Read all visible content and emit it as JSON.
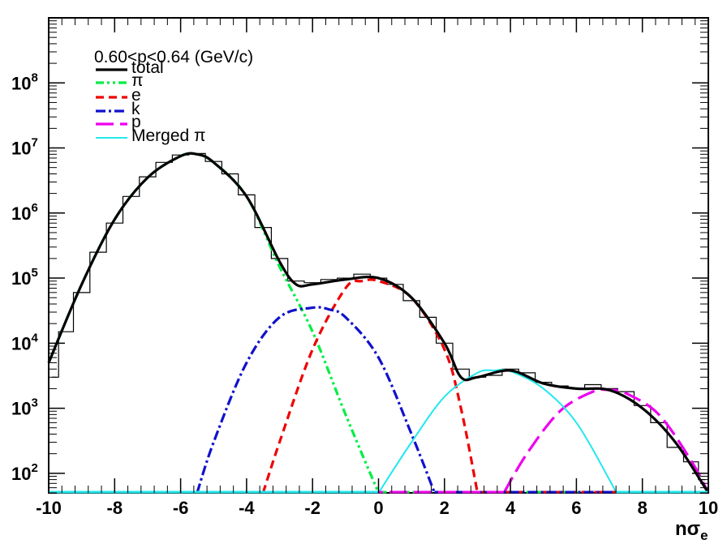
{
  "chart_data": {
    "type": "line",
    "title": "",
    "annotation": "0.60<p<0.64 (GeV/c)",
    "xlabel_main": "nσ",
    "xlabel_sub": "e",
    "ylabel": "",
    "xlim": [
      -10,
      10
    ],
    "ylim": [
      50,
      1000000000
    ],
    "yscale": "log",
    "grid": false,
    "legend_position": "top-left",
    "x_ticks": [
      -10,
      -8,
      -6,
      -4,
      -2,
      0,
      2,
      4,
      6,
      8,
      10
    ],
    "x_tick_labels": [
      "-10",
      "-8",
      "-6",
      "-4",
      "-2",
      "0",
      "2",
      "4",
      "6",
      "8",
      "10"
    ],
    "y_ticks": [
      100,
      1000,
      10000,
      100000,
      1000000,
      10000000,
      100000000
    ],
    "y_tick_base": "10",
    "y_tick_exponents": [
      "2",
      "3",
      "4",
      "5",
      "6",
      "7",
      "8"
    ],
    "series": [
      {
        "name": "total",
        "color": "#000000",
        "style": "solid",
        "x": [
          -10,
          -9,
          -8,
          -7,
          -6,
          -5.5,
          -5,
          -4,
          -3,
          -2.5,
          -2,
          -1,
          0,
          1,
          2,
          2.5,
          3,
          4,
          5,
          6,
          7,
          8,
          9,
          10
        ],
        "y": [
          5000,
          80000,
          800000,
          3500000,
          7500000,
          8000000,
          6000000,
          1800000,
          180000,
          80000,
          80000,
          95000,
          100000,
          50000,
          10000,
          3000,
          3000,
          3800,
          2400,
          2000,
          1900,
          1000,
          300,
          50
        ]
      },
      {
        "name": "π",
        "color": "#00ee44",
        "style": "dash-dot-dot",
        "x": [
          -10,
          -9,
          -8,
          -7,
          -6,
          -5.5,
          -5,
          -4,
          -3,
          -2,
          -1,
          0
        ],
        "y": [
          5000,
          80000,
          800000,
          3500000,
          7500000,
          8000000,
          6000000,
          1800000,
          150000,
          15000,
          800,
          50
        ]
      },
      {
        "name": "e",
        "color": "#ee0000",
        "style": "dashed",
        "x": [
          -3.5,
          -3,
          -2,
          -1,
          -0.5,
          0,
          1,
          2,
          2.5,
          3
        ],
        "y": [
          50,
          300,
          8000,
          70000,
          90000,
          90000,
          50000,
          8000,
          1000,
          50
        ]
      },
      {
        "name": "k",
        "color": "#1111cc",
        "style": "dash-dot",
        "x": [
          -5.5,
          -5,
          -4,
          -3,
          -2,
          -1.5,
          -1,
          0,
          1,
          1.7
        ],
        "y": [
          50,
          300,
          5000,
          25000,
          35000,
          33000,
          25000,
          6000,
          400,
          50
        ]
      },
      {
        "name": "p",
        "color": "#ee00ee",
        "style": "long-dash",
        "x": [
          3.8,
          4.5,
          5.5,
          6.5,
          7,
          7.5,
          8.5,
          9.5,
          10
        ],
        "y": [
          50,
          200,
          900,
          1800,
          1900,
          1700,
          800,
          150,
          50
        ]
      },
      {
        "name": "Merged π",
        "color": "#22e8ee",
        "style": "solid",
        "x": [
          0,
          1,
          2,
          3,
          3.5,
          4,
          5,
          6,
          7,
          7.2
        ],
        "y": [
          50,
          300,
          1500,
          3500,
          3800,
          3700,
          2000,
          600,
          80,
          50
        ]
      }
    ],
    "histogram": {
      "x": [
        -9.9,
        -9.5,
        -9,
        -8.5,
        -8,
        -7.5,
        -7,
        -6.5,
        -6,
        -5.5,
        -5,
        -4.5,
        -4,
        -3.5,
        -3,
        -2.5,
        -2,
        -1.5,
        -1,
        -0.5,
        0,
        0.5,
        1,
        1.5,
        2,
        2.5,
        3,
        3.5,
        4,
        4.5,
        5,
        5.5,
        6,
        6.5,
        7,
        7.5,
        8,
        8.5,
        9,
        9.5,
        9.9
      ],
      "y": [
        3000,
        15000,
        60000,
        250000,
        700000,
        1800000,
        3600000,
        6000000,
        7800000,
        8200000,
        6200000,
        4000000,
        1900000,
        600000,
        200000,
        90000,
        85000,
        95000,
        100000,
        115000,
        100000,
        80000,
        45000,
        25000,
        10000,
        4000,
        3000,
        3200,
        4000,
        3500,
        2500,
        2200,
        2000,
        2300,
        2000,
        1800,
        1100,
        600,
        250,
        150,
        80
      ]
    }
  }
}
